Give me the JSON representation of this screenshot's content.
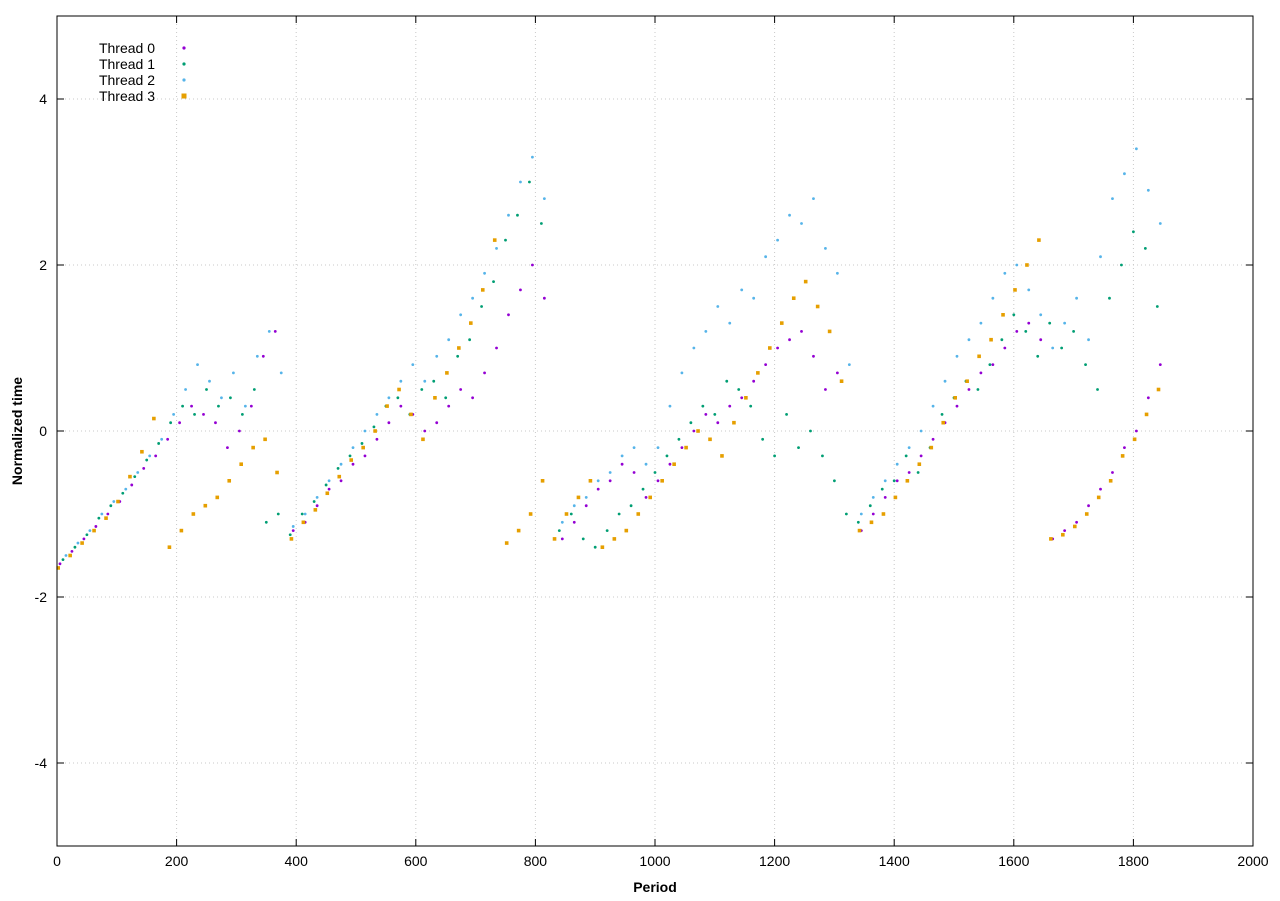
{
  "chart_data": {
    "type": "scatter",
    "title": "",
    "xlabel": "Period",
    "ylabel": "Normalized time",
    "xlim": [
      0,
      2000
    ],
    "ylim": [
      -5,
      5
    ],
    "x_ticks": [
      0,
      200,
      400,
      600,
      800,
      1000,
      1200,
      1400,
      1600,
      1800,
      2000
    ],
    "y_ticks": [
      -4,
      -2,
      0,
      2,
      4
    ],
    "grid": true,
    "legend_position": "top-left",
    "series": [
      {
        "name": "Thread 0",
        "color": "#9400d3",
        "marker": "dot",
        "x": [
          5,
          25,
          45,
          65,
          85,
          105,
          125,
          145,
          165,
          185,
          205,
          225,
          245,
          265,
          285,
          305,
          325,
          345,
          365,
          395,
          415,
          435,
          455,
          475,
          495,
          515,
          535,
          555,
          575,
          595,
          615,
          635,
          655,
          675,
          695,
          715,
          735,
          755,
          775,
          795,
          815,
          845,
          865,
          885,
          905,
          925,
          945,
          965,
          985,
          1005,
          1025,
          1045,
          1065,
          1085,
          1105,
          1125,
          1145,
          1165,
          1185,
          1205,
          1225,
          1245,
          1265,
          1285,
          1305,
          1345,
          1365,
          1385,
          1405,
          1425,
          1445,
          1465,
          1485,
          1505,
          1525,
          1545,
          1565,
          1585,
          1605,
          1625,
          1645,
          1665,
          1685,
          1705,
          1725,
          1745,
          1765,
          1785,
          1805,
          1825,
          1845
        ],
        "y": [
          -1.6,
          -1.45,
          -1.3,
          -1.15,
          -1.0,
          -0.85,
          -0.65,
          -0.45,
          -0.3,
          -0.1,
          0.1,
          0.3,
          0.2,
          0.1,
          -0.2,
          0.0,
          0.3,
          0.9,
          1.2,
          -1.2,
          -1.1,
          -0.9,
          -0.7,
          -0.6,
          -0.4,
          -0.3,
          -0.1,
          0.1,
          0.3,
          0.2,
          0.0,
          0.1,
          0.3,
          0.5,
          0.4,
          0.7,
          1.0,
          1.4,
          1.7,
          2.0,
          1.6,
          -1.3,
          -1.1,
          -0.9,
          -0.7,
          -0.6,
          -0.4,
          -0.5,
          -0.8,
          -0.6,
          -0.4,
          -0.2,
          0.0,
          0.2,
          0.1,
          0.3,
          0.4,
          0.6,
          0.8,
          1.0,
          1.1,
          1.2,
          0.9,
          0.5,
          0.7,
          -1.2,
          -1.0,
          -0.8,
          -0.6,
          -0.5,
          -0.3,
          -0.1,
          0.1,
          0.3,
          0.5,
          0.7,
          0.8,
          1.0,
          1.2,
          1.3,
          1.1,
          -1.3,
          -1.2,
          -1.1,
          -0.9,
          -0.7,
          -0.5,
          -0.2,
          0.0,
          0.4,
          0.8
        ]
      },
      {
        "name": "Thread 1",
        "color": "#009e73",
        "marker": "dot",
        "x": [
          10,
          30,
          50,
          70,
          90,
          110,
          130,
          150,
          170,
          190,
          210,
          230,
          250,
          270,
          290,
          310,
          330,
          350,
          370,
          390,
          410,
          430,
          450,
          470,
          490,
          510,
          530,
          550,
          570,
          590,
          610,
          630,
          650,
          670,
          690,
          710,
          730,
          750,
          770,
          790,
          810,
          840,
          860,
          880,
          900,
          920,
          940,
          960,
          980,
          1000,
          1020,
          1040,
          1060,
          1080,
          1100,
          1120,
          1140,
          1160,
          1180,
          1200,
          1220,
          1240,
          1260,
          1280,
          1300,
          1320,
          1340,
          1360,
          1380,
          1400,
          1420,
          1440,
          1460,
          1480,
          1500,
          1520,
          1540,
          1560,
          1580,
          1600,
          1620,
          1640,
          1660,
          1680,
          1700,
          1720,
          1740,
          1760,
          1780,
          1800,
          1820,
          1840
        ],
        "y": [
          -1.55,
          -1.4,
          -1.25,
          -1.05,
          -0.9,
          -0.75,
          -0.55,
          -0.35,
          -0.15,
          0.1,
          0.3,
          0.2,
          0.5,
          0.3,
          0.4,
          0.2,
          0.5,
          -1.1,
          -1.0,
          -1.25,
          -1.0,
          -0.85,
          -0.65,
          -0.45,
          -0.3,
          -0.15,
          0.05,
          0.3,
          0.4,
          0.2,
          0.5,
          0.6,
          0.4,
          0.9,
          1.1,
          1.5,
          1.8,
          2.3,
          2.6,
          3.0,
          2.5,
          -1.2,
          -1.0,
          -1.3,
          -1.4,
          -1.2,
          -1.0,
          -0.9,
          -0.7,
          -0.5,
          -0.3,
          -0.1,
          0.1,
          0.3,
          0.2,
          0.6,
          0.5,
          0.3,
          -0.1,
          -0.3,
          0.2,
          -0.2,
          0.0,
          -0.3,
          -0.6,
          -1.0,
          -1.1,
          -0.9,
          -0.7,
          -0.6,
          -0.3,
          -0.5,
          -0.2,
          0.2,
          0.4,
          0.6,
          0.5,
          0.8,
          1.1,
          1.4,
          1.2,
          0.9,
          1.3,
          1.0,
          1.2,
          0.8,
          0.5,
          1.6,
          2.0,
          2.4,
          2.2,
          1.5
        ]
      },
      {
        "name": "Thread 2",
        "color": "#56b4e9",
        "marker": "dot",
        "x": [
          15,
          35,
          55,
          75,
          95,
          115,
          135,
          155,
          175,
          195,
          215,
          235,
          255,
          275,
          295,
          315,
          335,
          355,
          375,
          395,
          415,
          435,
          455,
          475,
          495,
          515,
          535,
          555,
          575,
          595,
          615,
          635,
          655,
          675,
          695,
          715,
          735,
          755,
          775,
          795,
          815,
          845,
          865,
          885,
          905,
          925,
          945,
          965,
          985,
          1005,
          1025,
          1045,
          1065,
          1085,
          1105,
          1125,
          1145,
          1165,
          1185,
          1205,
          1225,
          1245,
          1265,
          1285,
          1305,
          1325,
          1345,
          1365,
          1385,
          1405,
          1425,
          1445,
          1465,
          1485,
          1505,
          1525,
          1545,
          1565,
          1585,
          1605,
          1625,
          1645,
          1665,
          1685,
          1705,
          1725,
          1745,
          1765,
          1785,
          1805,
          1825,
          1845
        ],
        "y": [
          -1.5,
          -1.35,
          -1.2,
          -1.0,
          -0.85,
          -0.7,
          -0.5,
          -0.3,
          -0.1,
          0.2,
          0.5,
          0.8,
          0.6,
          0.4,
          0.7,
          0.3,
          0.9,
          1.2,
          0.7,
          -1.15,
          -1.0,
          -0.8,
          -0.6,
          -0.4,
          -0.2,
          0.0,
          0.2,
          0.4,
          0.6,
          0.8,
          0.6,
          0.9,
          1.1,
          1.4,
          1.6,
          1.9,
          2.2,
          2.6,
          3.0,
          3.3,
          2.8,
          -1.1,
          -0.9,
          -0.8,
          -0.6,
          -0.5,
          -0.3,
          -0.2,
          -0.4,
          -0.2,
          0.3,
          0.7,
          1.0,
          1.2,
          1.5,
          1.3,
          1.7,
          1.6,
          2.1,
          2.3,
          2.6,
          2.5,
          2.8,
          2.2,
          1.9,
          0.8,
          -1.0,
          -0.8,
          -0.6,
          -0.4,
          -0.2,
          0.0,
          0.3,
          0.6,
          0.9,
          1.1,
          1.3,
          1.6,
          1.9,
          2.0,
          1.7,
          1.4,
          1.0,
          1.3,
          1.6,
          1.1,
          2.1,
          2.8,
          3.1,
          3.4,
          2.9,
          2.5
        ]
      },
      {
        "name": "Thread 3",
        "color": "#e69f00",
        "marker": "square",
        "x": [
          2,
          22,
          42,
          62,
          82,
          102,
          122,
          142,
          162,
          188,
          208,
          228,
          248,
          268,
          288,
          308,
          328,
          348,
          368,
          392,
          412,
          432,
          452,
          472,
          492,
          512,
          532,
          552,
          572,
          592,
          612,
          632,
          652,
          672,
          692,
          712,
          732,
          752,
          772,
          792,
          812,
          832,
          852,
          872,
          892,
          912,
          932,
          952,
          972,
          992,
          1012,
          1032,
          1052,
          1072,
          1092,
          1112,
          1132,
          1152,
          1172,
          1192,
          1212,
          1232,
          1252,
          1272,
          1292,
          1312,
          1342,
          1362,
          1382,
          1402,
          1422,
          1442,
          1462,
          1482,
          1502,
          1522,
          1542,
          1562,
          1582,
          1602,
          1622,
          1642,
          1662,
          1682,
          1702,
          1722,
          1742,
          1762,
          1782,
          1802,
          1822,
          1842
        ],
        "y": [
          -1.65,
          -1.5,
          -1.35,
          -1.2,
          -1.05,
          -0.85,
          -0.55,
          -0.25,
          0.15,
          -1.4,
          -1.2,
          -1.0,
          -0.9,
          -0.8,
          -0.6,
          -0.4,
          -0.2,
          -0.1,
          -0.5,
          -1.3,
          -1.1,
          -0.95,
          -0.75,
          -0.55,
          -0.35,
          -0.2,
          0.0,
          0.3,
          0.5,
          0.2,
          -0.1,
          0.4,
          0.7,
          1.0,
          1.3,
          1.7,
          2.3,
          -1.35,
          -1.2,
          -1.0,
          -0.6,
          -1.3,
          -1.0,
          -0.8,
          -0.6,
          -1.4,
          -1.3,
          -1.2,
          -1.0,
          -0.8,
          -0.6,
          -0.4,
          -0.2,
          0.0,
          -0.1,
          -0.3,
          0.1,
          0.4,
          0.7,
          1.0,
          1.3,
          1.6,
          1.8,
          1.5,
          1.2,
          0.6,
          -1.2,
          -1.1,
          -1.0,
          -0.8,
          -0.6,
          -0.4,
          -0.2,
          0.1,
          0.4,
          0.6,
          0.9,
          1.1,
          1.4,
          1.7,
          2.0,
          2.3,
          -1.3,
          -1.25,
          -1.15,
          -1.0,
          -0.8,
          -0.6,
          -0.3,
          -0.1,
          0.2,
          0.5
        ]
      }
    ]
  }
}
